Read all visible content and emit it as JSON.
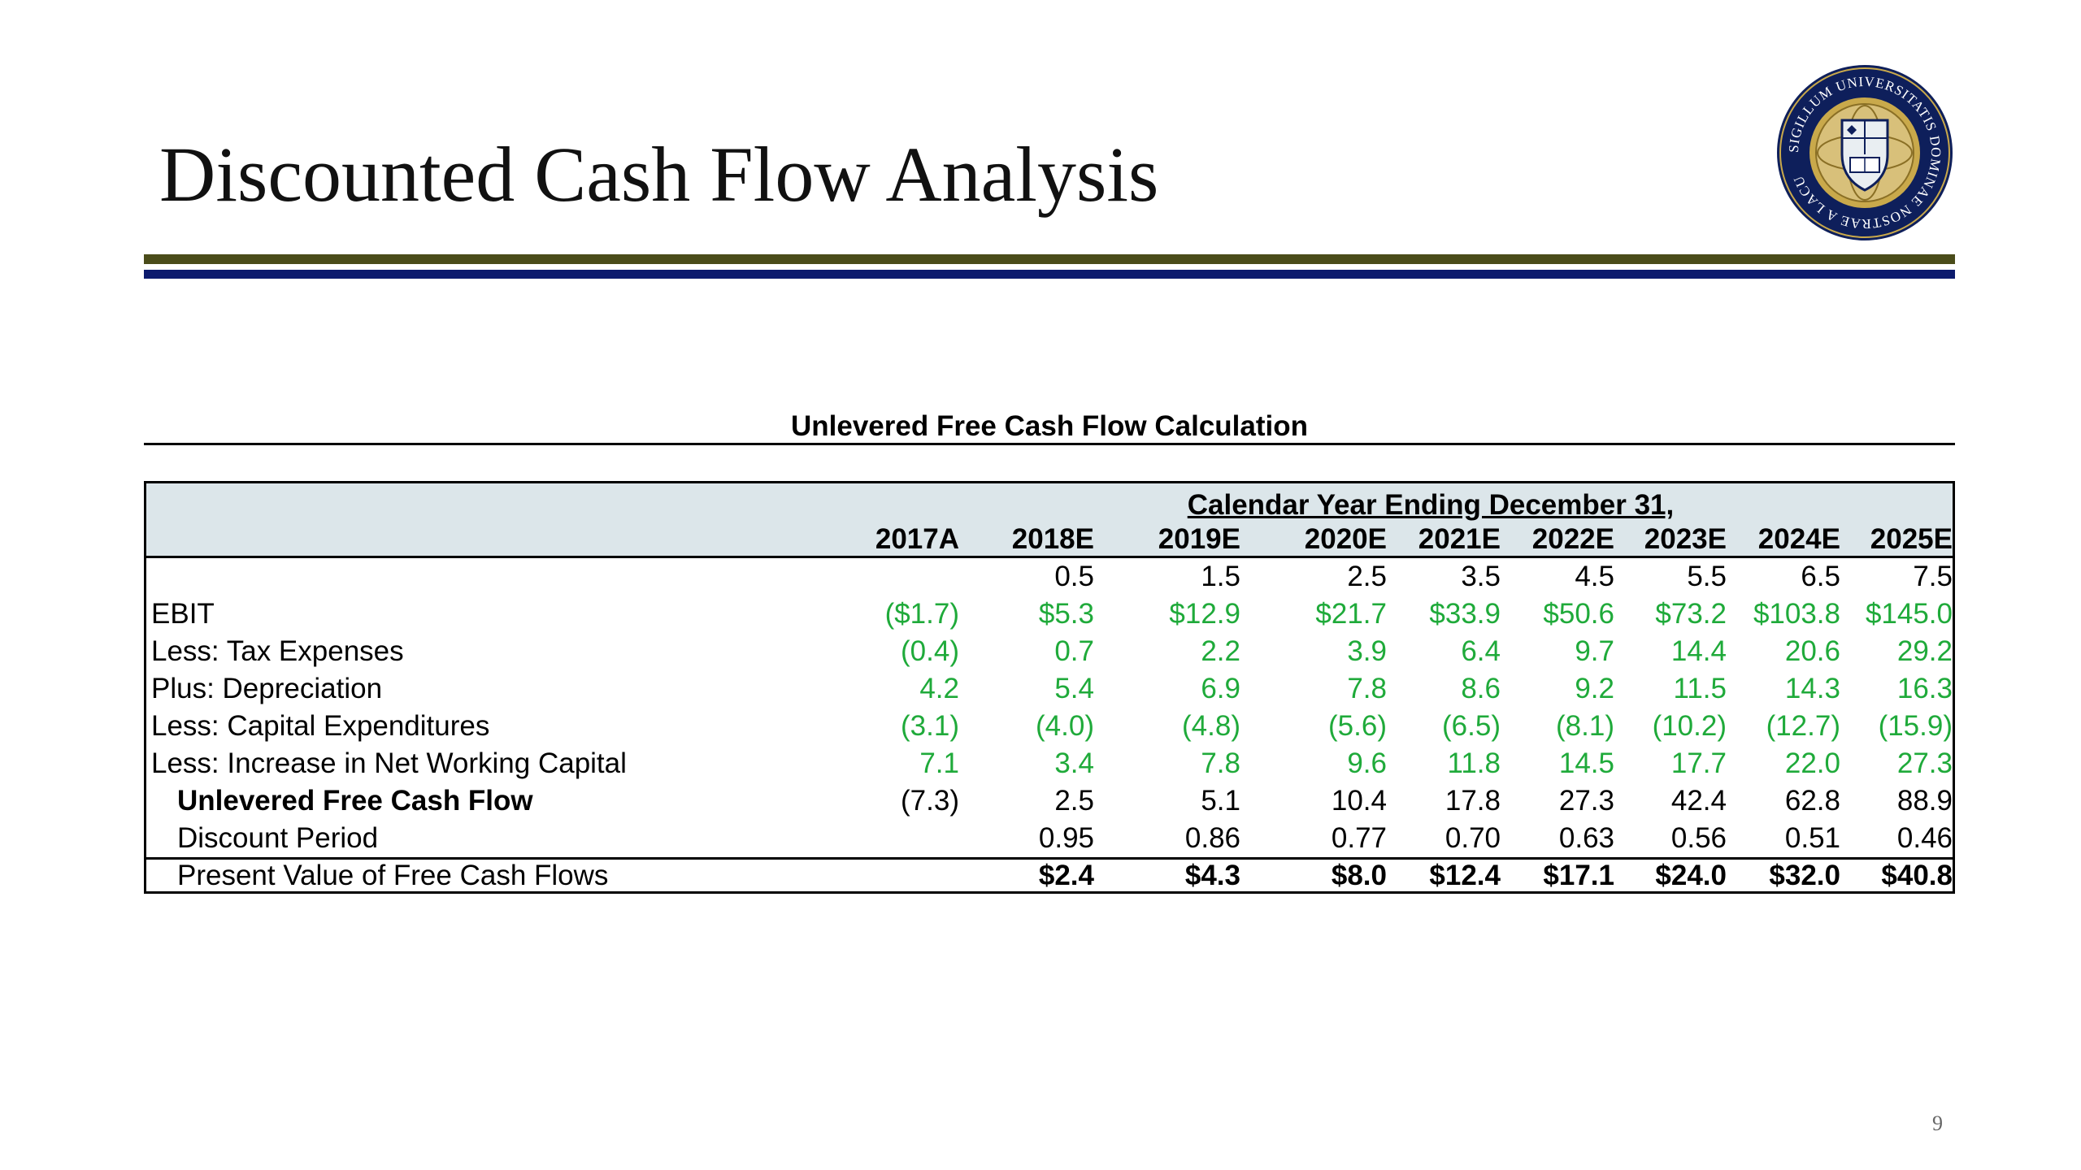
{
  "slide": {
    "title": "Discounted Cash Flow Analysis",
    "page_number": "9",
    "seal_text": "SIGILLUM UNIVERSITATIS DOMINAE NOSTRAE A LACU"
  },
  "colors": {
    "olive_rule": "#4a4c1a",
    "navy_rule": "#0d1b6e",
    "header_fill": "#dce6ea",
    "input_green": "#1faa3a",
    "seal_navy": "#0e1f5b",
    "seal_gold": "#c9a94b"
  },
  "table": {
    "caption": "Unlevered Free Cash Flow Calculation",
    "span_header": "Calendar Year Ending December 31,",
    "years": [
      "2017A",
      "2018E",
      "2019E",
      "2020E",
      "2021E",
      "2022E",
      "2023E",
      "2024E",
      "2025E"
    ],
    "rows": [
      {
        "label": "",
        "style": "plain",
        "values": [
          "",
          "0.5",
          "1.5",
          "2.5",
          "3.5",
          "4.5",
          "5.5",
          "6.5",
          "7.5"
        ]
      },
      {
        "label": "EBIT",
        "style": "green",
        "values": [
          "($1.7)",
          "$5.3",
          "$12.9",
          "$21.7",
          "$33.9",
          "$50.6",
          "$73.2",
          "$103.8",
          "$145.0"
        ]
      },
      {
        "label": "Less: Tax Expenses",
        "style": "green",
        "values": [
          "(0.4)",
          "0.7",
          "2.2",
          "3.9",
          "6.4",
          "9.7",
          "14.4",
          "20.6",
          "29.2"
        ]
      },
      {
        "label": "Plus: Depreciation",
        "style": "green",
        "values": [
          "4.2",
          "5.4",
          "6.9",
          "7.8",
          "8.6",
          "9.2",
          "11.5",
          "14.3",
          "16.3"
        ]
      },
      {
        "label": "Less: Capital Expenditures",
        "style": "green",
        "values": [
          "(3.1)",
          "(4.0)",
          "(4.8)",
          "(5.6)",
          "(6.5)",
          "(8.1)",
          "(10.2)",
          "(12.7)",
          "(15.9)"
        ]
      },
      {
        "label": "Less: Increase in Net Working Capital",
        "style": "green",
        "values": [
          "7.1",
          "3.4",
          "7.8",
          "9.6",
          "11.8",
          "14.5",
          "17.7",
          "22.0",
          "27.3"
        ]
      },
      {
        "label": "Unlevered Free Cash Flow",
        "style": "bold-label",
        "values": [
          "(7.3)",
          "2.5",
          "5.1",
          "10.4",
          "17.8",
          "27.3",
          "42.4",
          "62.8",
          "88.9"
        ]
      },
      {
        "label": "Discount Period",
        "style": "indent",
        "values": [
          "",
          "0.95",
          "0.86",
          "0.77",
          "0.70",
          "0.63",
          "0.56",
          "0.51",
          "0.46"
        ]
      },
      {
        "label": "Present Value of Free Cash Flows",
        "style": "pv",
        "values": [
          "",
          "$2.4",
          "$4.3",
          "$8.0",
          "$12.4",
          "$17.1",
          "$24.0",
          "$32.0",
          "$40.8"
        ]
      }
    ]
  }
}
